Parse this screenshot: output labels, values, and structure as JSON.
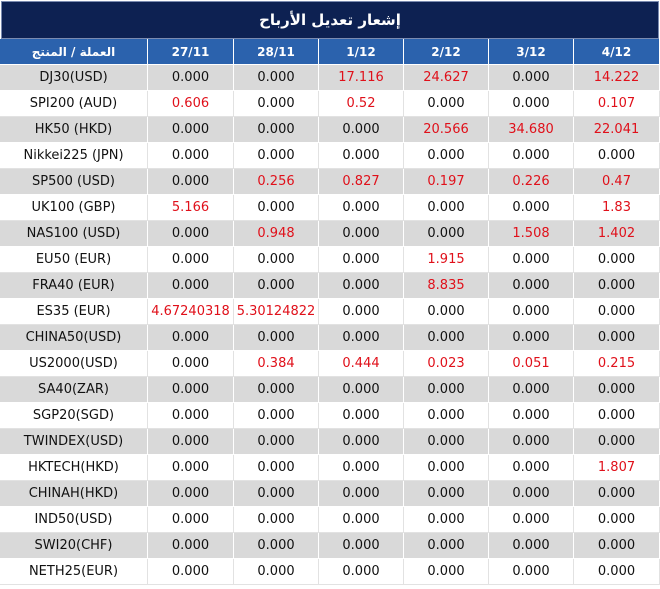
{
  "header": {
    "title": "إشعار تعديل الأرباح"
  },
  "table": {
    "columns": [
      "العملة / المنتج",
      "27/11",
      "28/11",
      "1/12",
      "2/12",
      "3/12",
      "4/12"
    ],
    "rows": [
      [
        "DJ30(USD)",
        "0.000",
        "0.000",
        "17.116",
        "24.627",
        "0.000",
        "14.222"
      ],
      [
        "SPI200 (AUD)",
        "0.606",
        "0.000",
        "0.52",
        "0.000",
        "0.000",
        "0.107"
      ],
      [
        "HK50 (HKD)",
        "0.000",
        "0.000",
        "0.000",
        "20.566",
        "34.680",
        "22.041"
      ],
      [
        "Nikkei225 (JPN)",
        "0.000",
        "0.000",
        "0.000",
        "0.000",
        "0.000",
        "0.000"
      ],
      [
        "SP500 (USD)",
        "0.000",
        "0.256",
        "0.827",
        "0.197",
        "0.226",
        "0.47"
      ],
      [
        "UK100 (GBP)",
        "5.166",
        "0.000",
        "0.000",
        "0.000",
        "0.000",
        "1.83"
      ],
      [
        "NAS100 (USD)",
        "0.000",
        "0.948",
        "0.000",
        "0.000",
        "1.508",
        "1.402"
      ],
      [
        "EU50 (EUR)",
        "0.000",
        "0.000",
        "0.000",
        "1.915",
        "0.000",
        "0.000"
      ],
      [
        "FRA40 (EUR)",
        "0.000",
        "0.000",
        "0.000",
        "8.835",
        "0.000",
        "0.000"
      ],
      [
        "ES35 (EUR)",
        "4.67240318",
        "5.30124822",
        "0.000",
        "0.000",
        "0.000",
        "0.000"
      ],
      [
        "CHINA50(USD)",
        "0.000",
        "0.000",
        "0.000",
        "0.000",
        "0.000",
        "0.000"
      ],
      [
        "US2000(USD)",
        "0.000",
        "0.384",
        "0.444",
        "0.023",
        "0.051",
        "0.215"
      ],
      [
        "SA40(ZAR)",
        "0.000",
        "0.000",
        "0.000",
        "0.000",
        "0.000",
        "0.000"
      ],
      [
        "SGP20(SGD)",
        "0.000",
        "0.000",
        "0.000",
        "0.000",
        "0.000",
        "0.000"
      ],
      [
        "TWINDEX(USD)",
        "0.000",
        "0.000",
        "0.000",
        "0.000",
        "0.000",
        "0.000"
      ],
      [
        "HKTECH(HKD)",
        "0.000",
        "0.000",
        "0.000",
        "0.000",
        "0.000",
        "1.807"
      ],
      [
        "CHINAH(HKD)",
        "0.000",
        "0.000",
        "0.000",
        "0.000",
        "0.000",
        "0.000"
      ],
      [
        "IND50(USD)",
        "0.000",
        "0.000",
        "0.000",
        "0.000",
        "0.000",
        "0.000"
      ],
      [
        "SWI20(CHF)",
        "0.000",
        "0.000",
        "0.000",
        "0.000",
        "0.000",
        "0.000"
      ],
      [
        "NETH25(EUR)",
        "0.000",
        "0.000",
        "0.000",
        "0.000",
        "0.000",
        "0.000"
      ]
    ]
  }
}
